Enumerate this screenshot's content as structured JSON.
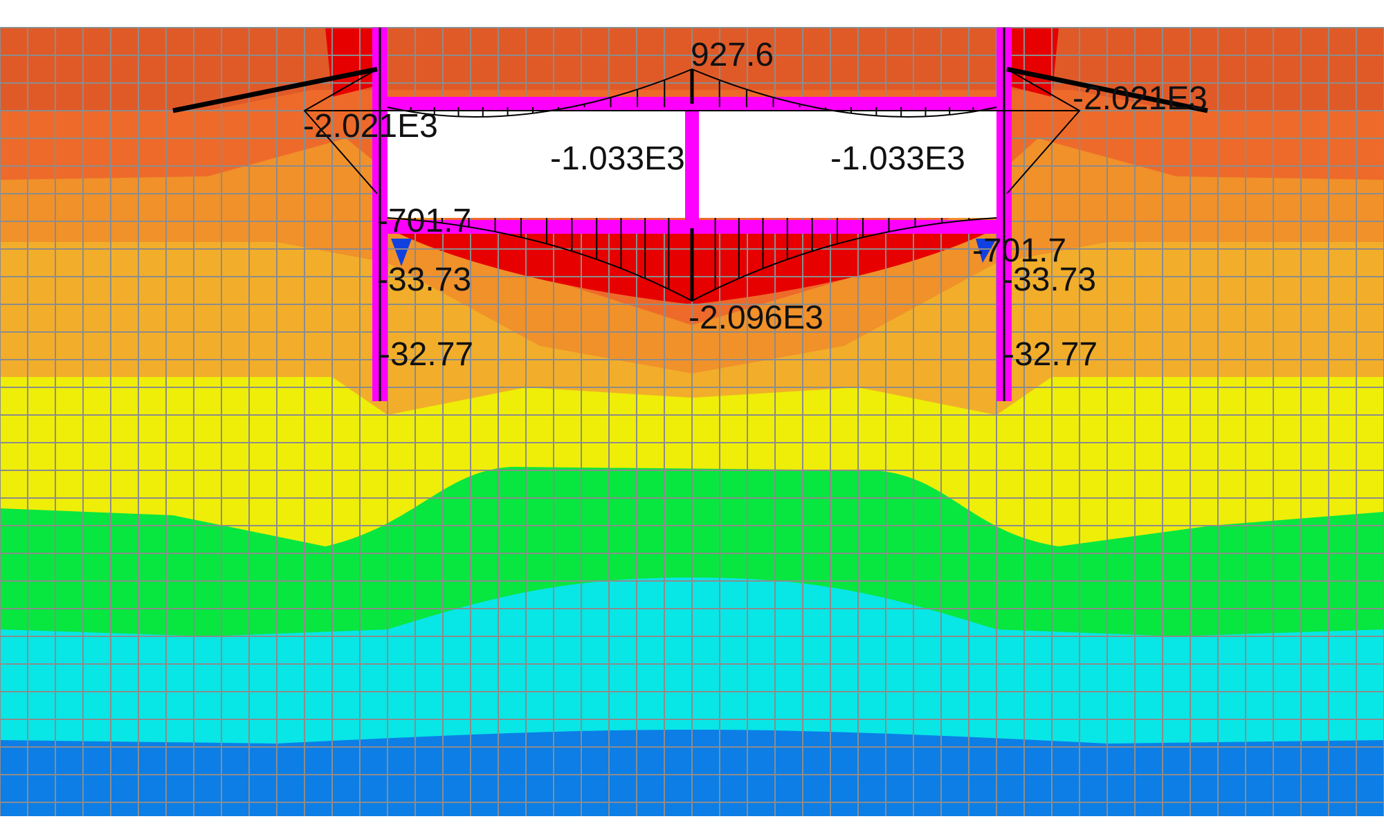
{
  "colors": {
    "background": "#ffffff",
    "mesh": "#8c8c8c",
    "structure": "#ff00ff",
    "diagram": "#000000",
    "bands": [
      "#e05a28",
      "#ee6a2a",
      "#f0912a",
      "#f2ae2a",
      "#eeee08",
      "#08e640",
      "#08e6e6",
      "#0c7ee6"
    ],
    "red_zone": "#e60000",
    "opening": "#ffffff"
  },
  "labels": {
    "top_center": "927.6",
    "top_left": "-2.021E3",
    "top_right": "-2.021E3",
    "roof_left": "-1.033E3",
    "roof_right": "-1.033E3",
    "corner_left": "-701.7",
    "corner_right": "-701.7",
    "bottom_center": "-2.096E3",
    "wall_left_upper": "-33.73",
    "wall_right_upper": "-33.73",
    "wall_left_lower": "-32.77",
    "wall_right_lower": "-32.77"
  }
}
